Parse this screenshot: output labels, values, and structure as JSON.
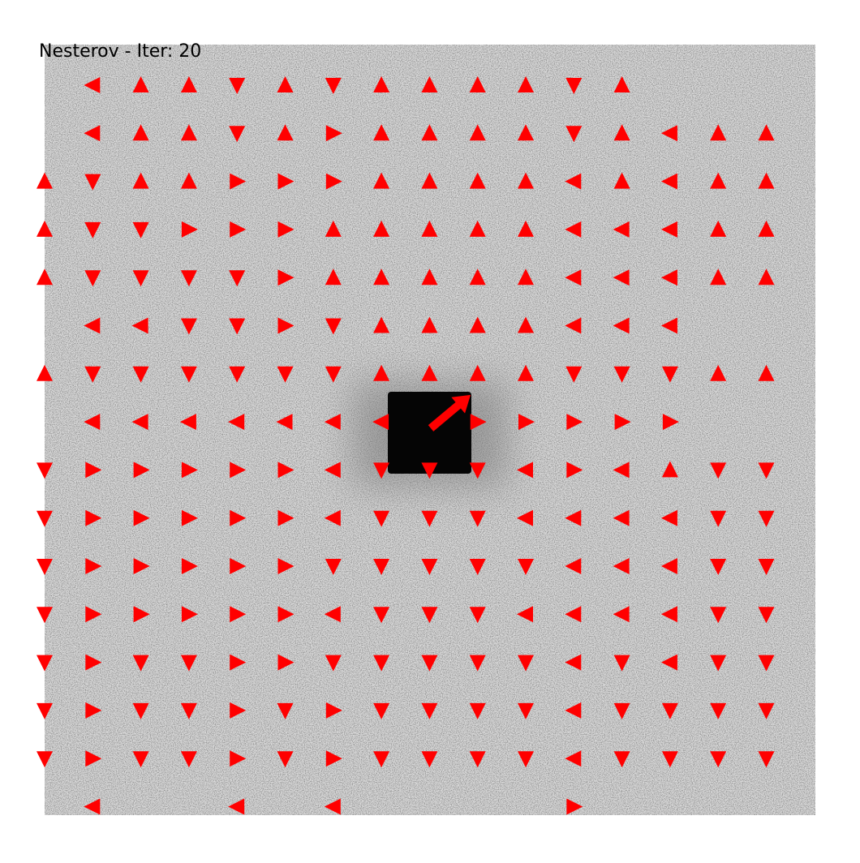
{
  "title": "Nesterov - Iter: 20",
  "colors": {
    "arrow": "#ff0000",
    "background_noise": "#dcdcdc",
    "target": "#050505"
  },
  "field_data": {
    "grid_rows": 16,
    "grid_cols": 16,
    "rows": [
      [
        "none",
        "left",
        "up",
        "up",
        "down",
        "up",
        "down",
        "up",
        "up",
        "up",
        "up",
        "down",
        "up",
        "none",
        "none",
        "none"
      ],
      [
        "none",
        "left",
        "up",
        "up",
        "down",
        "up",
        "right",
        "up",
        "up",
        "up",
        "up",
        "down",
        "up",
        "left",
        "up",
        "up"
      ],
      [
        "up",
        "down",
        "up",
        "up",
        "right",
        "right",
        "right",
        "up",
        "up",
        "up",
        "up",
        "left",
        "up",
        "left",
        "up",
        "up"
      ],
      [
        "up",
        "down",
        "down",
        "right",
        "right",
        "right",
        "up",
        "up",
        "up",
        "up",
        "up",
        "left",
        "left",
        "left",
        "up",
        "up"
      ],
      [
        "up",
        "down",
        "down",
        "down",
        "down",
        "right",
        "up",
        "up",
        "up",
        "up",
        "up",
        "left",
        "left",
        "left",
        "up",
        "up"
      ],
      [
        "none",
        "left",
        "left",
        "down",
        "down",
        "right",
        "down",
        "up",
        "up",
        "up",
        "up",
        "left",
        "left",
        "left",
        "none",
        "none"
      ],
      [
        "up",
        "down",
        "down",
        "down",
        "down",
        "down",
        "down",
        "up",
        "up",
        "up",
        "up",
        "down",
        "down",
        "down",
        "up",
        "up"
      ],
      [
        "none",
        "left",
        "left",
        "left",
        "left",
        "left",
        "left",
        "left",
        "none",
        "right",
        "right",
        "right",
        "right",
        "right",
        "none",
        "none"
      ],
      [
        "down",
        "right",
        "right",
        "right",
        "right",
        "right",
        "left",
        "down",
        "down",
        "down",
        "left",
        "right",
        "left",
        "up",
        "down",
        "down"
      ],
      [
        "down",
        "right",
        "right",
        "right",
        "right",
        "right",
        "left",
        "down",
        "down",
        "down",
        "left",
        "left",
        "left",
        "left",
        "down",
        "down"
      ],
      [
        "down",
        "right",
        "right",
        "right",
        "right",
        "right",
        "down",
        "down",
        "down",
        "down",
        "down",
        "left",
        "left",
        "left",
        "down",
        "down"
      ],
      [
        "down",
        "right",
        "right",
        "right",
        "right",
        "right",
        "left",
        "down",
        "down",
        "down",
        "left",
        "left",
        "left",
        "left",
        "down",
        "down"
      ],
      [
        "down",
        "right",
        "down",
        "down",
        "right",
        "right",
        "down",
        "down",
        "down",
        "down",
        "down",
        "left",
        "down",
        "left",
        "down",
        "down"
      ],
      [
        "down",
        "right",
        "down",
        "down",
        "right",
        "down",
        "right",
        "down",
        "down",
        "down",
        "down",
        "left",
        "down",
        "down",
        "down",
        "down"
      ],
      [
        "down",
        "right",
        "down",
        "down",
        "right",
        "down",
        "right",
        "down",
        "down",
        "down",
        "down",
        "left",
        "down",
        "down",
        "down",
        "down"
      ],
      [
        "none",
        "left",
        "none",
        "none",
        "left",
        "none",
        "left",
        "none",
        "none",
        "none",
        "none",
        "right",
        "none",
        "none",
        "none",
        "none"
      ]
    ],
    "agent_direction": "up-right"
  }
}
